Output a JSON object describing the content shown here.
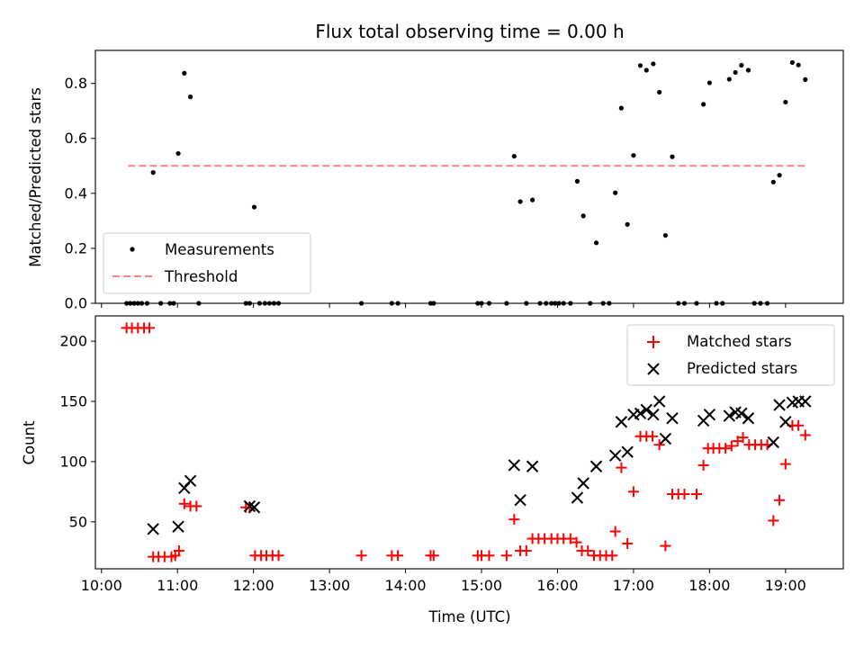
{
  "chart_data": [
    {
      "type": "scatter",
      "title": "Flux total observing time = 0.00 h",
      "xlabel": "",
      "ylabel": "Matched/Predicted stars",
      "ylim": [
        0,
        0.92
      ],
      "yticks": [
        0.0,
        0.2,
        0.4,
        0.6,
        0.8
      ],
      "ytick_labels": [
        "0.0",
        "0.2",
        "0.4",
        "0.6",
        "0.8"
      ],
      "x_axis": "time_utc_hours",
      "xlim": [
        9.92,
        19.76
      ],
      "xticks": [
        10,
        11,
        12,
        13,
        14,
        15,
        16,
        17,
        18,
        19
      ],
      "legend": {
        "position": "lower-left",
        "entries": [
          "Measurements",
          "Threshold"
        ]
      },
      "threshold": {
        "name": "Threshold",
        "y": 0.5,
        "x_range": [
          10.35,
          19.27
        ],
        "color": "#ff8080",
        "style": "dashed"
      },
      "series": [
        {
          "name": "Measurements",
          "color": "#000000",
          "marker": "dot",
          "points": [
            [
              10.33,
              0
            ],
            [
              10.38,
              0
            ],
            [
              10.43,
              0
            ],
            [
              10.48,
              0
            ],
            [
              10.53,
              0
            ],
            [
              10.6,
              0
            ],
            [
              10.68,
              0.476
            ],
            [
              10.78,
              0
            ],
            [
              10.9,
              0
            ],
            [
              10.95,
              0
            ],
            [
              11.01,
              0.545
            ],
            [
              11.09,
              0.837
            ],
            [
              11.17,
              0.751
            ],
            [
              11.28,
              0
            ],
            [
              11.9,
              0
            ],
            [
              11.95,
              0
            ],
            [
              12.01,
              0.35
            ],
            [
              12.08,
              0
            ],
            [
              12.15,
              0
            ],
            [
              12.21,
              0
            ],
            [
              12.27,
              0
            ],
            [
              12.33,
              0
            ],
            [
              13.42,
              0
            ],
            [
              13.82,
              0
            ],
            [
              13.9,
              0
            ],
            [
              14.33,
              0
            ],
            [
              14.37,
              0
            ],
            [
              14.95,
              0
            ],
            [
              15.0,
              0
            ],
            [
              15.1,
              0
            ],
            [
              15.33,
              0
            ],
            [
              15.43,
              0.535
            ],
            [
              15.51,
              0.37
            ],
            [
              15.59,
              0
            ],
            [
              15.67,
              0.376
            ],
            [
              15.77,
              0
            ],
            [
              15.85,
              0
            ],
            [
              15.92,
              0
            ],
            [
              15.97,
              0
            ],
            [
              16.02,
              0
            ],
            [
              16.08,
              0
            ],
            [
              16.17,
              0
            ],
            [
              16.26,
              0.444
            ],
            [
              16.34,
              0.318
            ],
            [
              16.43,
              0
            ],
            [
              16.51,
              0.22
            ],
            [
              16.6,
              0
            ],
            [
              16.68,
              0
            ],
            [
              16.76,
              0.402
            ],
            [
              16.84,
              0.71
            ],
            [
              16.92,
              0.287
            ],
            [
              17.0,
              0.538
            ],
            [
              17.09,
              0.865
            ],
            [
              17.17,
              0.848
            ],
            [
              17.26,
              0.871
            ],
            [
              17.34,
              0.768
            ],
            [
              17.42,
              0.247
            ],
            [
              17.51,
              0.533
            ],
            [
              17.59,
              0
            ],
            [
              17.67,
              0
            ],
            [
              17.83,
              0
            ],
            [
              17.92,
              0.724
            ],
            [
              18.0,
              0.802
            ],
            [
              18.09,
              0
            ],
            [
              18.17,
              0
            ],
            [
              18.26,
              0.815
            ],
            [
              18.34,
              0.84
            ],
            [
              18.42,
              0.866
            ],
            [
              18.51,
              0.848
            ],
            [
              18.59,
              0
            ],
            [
              18.67,
              0
            ],
            [
              18.76,
              0
            ],
            [
              18.84,
              0.441
            ],
            [
              18.92,
              0.466
            ],
            [
              19.0,
              0.732
            ],
            [
              19.09,
              0.876
            ],
            [
              19.17,
              0.867
            ],
            [
              19.26,
              0.814
            ]
          ]
        }
      ]
    },
    {
      "type": "scatter",
      "title": "",
      "xlabel": "Time (UTC)",
      "ylabel": "Count",
      "ylim": [
        11,
        221
      ],
      "yticks": [
        50,
        100,
        150,
        200
      ],
      "ytick_labels": [
        "50",
        "100",
        "150",
        "200"
      ],
      "x_axis": "time_utc_hours",
      "xlim": [
        9.92,
        19.76
      ],
      "xticks": [
        10,
        11,
        12,
        13,
        14,
        15,
        16,
        17,
        18,
        19
      ],
      "xtick_labels": [
        "10:00",
        "11:00",
        "12:00",
        "13:00",
        "14:00",
        "15:00",
        "16:00",
        "17:00",
        "18:00",
        "19:00"
      ],
      "legend": {
        "position": "top-right",
        "entries": [
          "Matched stars",
          "Predicted stars"
        ]
      },
      "series": [
        {
          "name": "Matched stars",
          "color": "#ff0000",
          "marker": "plus",
          "points": [
            [
              10.33,
              211
            ],
            [
              10.4,
              211
            ],
            [
              10.48,
              211
            ],
            [
              10.56,
              211
            ],
            [
              10.63,
              211
            ],
            [
              10.68,
              21
            ],
            [
              10.75,
              21
            ],
            [
              10.83,
              21
            ],
            [
              10.92,
              21
            ],
            [
              10.97,
              22
            ],
            [
              11.02,
              26
            ],
            [
              11.09,
              65
            ],
            [
              11.17,
              63
            ],
            [
              11.25,
              63
            ],
            [
              11.9,
              62
            ],
            [
              11.95,
              62
            ],
            [
              12.02,
              22
            ],
            [
              12.1,
              22
            ],
            [
              12.17,
              22
            ],
            [
              12.25,
              22
            ],
            [
              12.33,
              22
            ],
            [
              13.42,
              22
            ],
            [
              13.82,
              22
            ],
            [
              13.9,
              22
            ],
            [
              14.33,
              22
            ],
            [
              14.37,
              22
            ],
            [
              14.95,
              22
            ],
            [
              15.0,
              22
            ],
            [
              15.1,
              22
            ],
            [
              15.33,
              22
            ],
            [
              15.43,
              52
            ],
            [
              15.51,
              26
            ],
            [
              15.59,
              26
            ],
            [
              15.67,
              36
            ],
            [
              15.75,
              36
            ],
            [
              15.83,
              36
            ],
            [
              15.92,
              36
            ],
            [
              16.0,
              36
            ],
            [
              16.08,
              36
            ],
            [
              16.17,
              36
            ],
            [
              16.25,
              33
            ],
            [
              16.32,
              26
            ],
            [
              16.4,
              26
            ],
            [
              16.48,
              22
            ],
            [
              16.56,
              22
            ],
            [
              16.64,
              22
            ],
            [
              16.72,
              22
            ],
            [
              16.76,
              42
            ],
            [
              16.84,
              95
            ],
            [
              16.92,
              32
            ],
            [
              17.0,
              75
            ],
            [
              17.09,
              121
            ],
            [
              17.17,
              121
            ],
            [
              17.25,
              121
            ],
            [
              17.34,
              114
            ],
            [
              17.42,
              30
            ],
            [
              17.51,
              73
            ],
            [
              17.59,
              73
            ],
            [
              17.67,
              73
            ],
            [
              17.83,
              73
            ],
            [
              17.92,
              97
            ],
            [
              17.98,
              111
            ],
            [
              18.05,
              111
            ],
            [
              18.13,
              111
            ],
            [
              18.21,
              111
            ],
            [
              18.29,
              113
            ],
            [
              18.37,
              117
            ],
            [
              18.44,
              120
            ],
            [
              18.52,
              114
            ],
            [
              18.6,
              114
            ],
            [
              18.68,
              114
            ],
            [
              18.76,
              114
            ],
            [
              18.84,
              51
            ],
            [
              18.92,
              68
            ],
            [
              19.0,
              98
            ],
            [
              19.09,
              130
            ],
            [
              19.17,
              130
            ],
            [
              19.26,
              122
            ]
          ]
        },
        {
          "name": "Predicted stars",
          "color": "#000000",
          "marker": "x",
          "points": [
            [
              10.68,
              44
            ],
            [
              11.01,
              46
            ],
            [
              11.09,
              78
            ],
            [
              11.17,
              84
            ],
            [
              11.95,
              63
            ],
            [
              12.01,
              62
            ],
            [
              15.43,
              97
            ],
            [
              15.51,
              68
            ],
            [
              15.67,
              96
            ],
            [
              16.26,
              70
            ],
            [
              16.34,
              82
            ],
            [
              16.51,
              96
            ],
            [
              16.76,
              105
            ],
            [
              16.84,
              133
            ],
            [
              16.92,
              108
            ],
            [
              17.0,
              139
            ],
            [
              17.09,
              140
            ],
            [
              17.17,
              143
            ],
            [
              17.26,
              139
            ],
            [
              17.34,
              150
            ],
            [
              17.42,
              119
            ],
            [
              17.51,
              136
            ],
            [
              17.92,
              134
            ],
            [
              18.0,
              139
            ],
            [
              18.26,
              138
            ],
            [
              18.34,
              141
            ],
            [
              18.42,
              140
            ],
            [
              18.51,
              136
            ],
            [
              18.84,
              116
            ],
            [
              18.92,
              147
            ],
            [
              19.0,
              133
            ],
            [
              19.09,
              149
            ],
            [
              19.17,
              150
            ],
            [
              19.26,
              150
            ]
          ]
        }
      ]
    }
  ]
}
